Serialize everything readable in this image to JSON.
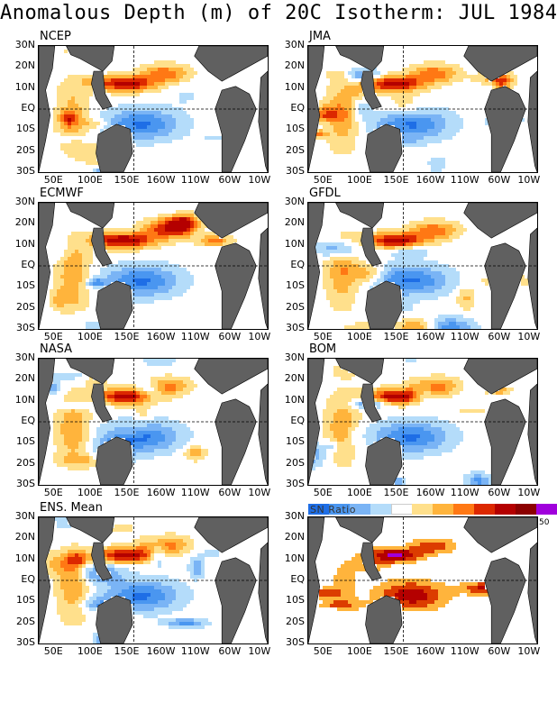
{
  "title": "Anomalous Depth (m) of 20C Isotherm: JUL 1984",
  "lat_labels": [
    "30N",
    "20N",
    "10N",
    "EQ",
    "10S",
    "20S",
    "30S"
  ],
  "lon_labels": [
    "50E",
    "100E",
    "150E",
    "160W",
    "110W",
    "60W",
    "10W"
  ],
  "panels": [
    {
      "label": "NCEP",
      "pattern": "anomaly",
      "seed": 11
    },
    {
      "label": "JMA",
      "pattern": "anomaly",
      "seed": 23
    },
    {
      "label": "ECMWF",
      "pattern": "anomaly",
      "seed": 37
    },
    {
      "label": "GFDL",
      "pattern": "anomaly",
      "seed": 41
    },
    {
      "label": "NASA",
      "pattern": "anomaly",
      "seed": 53
    },
    {
      "label": "BOM",
      "pattern": "anomaly",
      "seed": 67
    },
    {
      "label": "ENS. Mean",
      "pattern": "mean",
      "seed": 79
    },
    {
      "label": "",
      "pattern": "ratio",
      "seed": 97
    }
  ],
  "legend": {
    "title": "SN Ratio",
    "max_label": "50",
    "colors": [
      "#1e6ee6",
      "#4a96f0",
      "#7ab4f5",
      "#b4dcfa",
      "#ffffff",
      "#ffe08c",
      "#ffb43c",
      "#ff7814",
      "#dc2800",
      "#b40000",
      "#8c0000",
      "#a000dc"
    ]
  },
  "colors": {
    "land": "#606060",
    "background": "#ffffff",
    "anomaly_scale": [
      "#1e6ee6",
      "#4a96f0",
      "#7ab4f5",
      "#b4dcfa",
      "#ffffff",
      "#ffe08c",
      "#ffb43c",
      "#ff7814",
      "#dc2800",
      "#b40000"
    ],
    "ratio_scale": [
      "#ffffff",
      "#ffb43c",
      "#dc3c00",
      "#b40000",
      "#a000dc"
    ]
  }
}
